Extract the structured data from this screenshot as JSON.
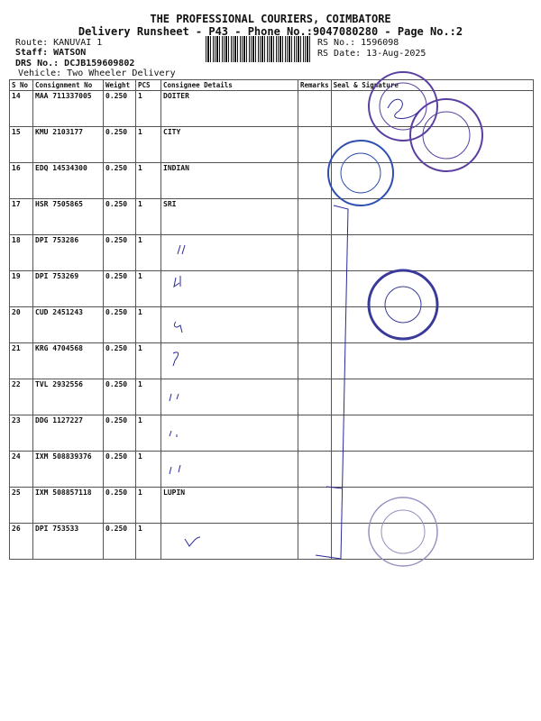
{
  "header": {
    "company": "THE PROFESSIONAL COURIERS, COIMBATORE",
    "subtitle": "Delivery Runsheet - P43 - Phone No.:9047080280 - Page No.:2",
    "route": "Route: KANUVAI 1",
    "staff": "Staff: WATSON",
    "drs": "DRS No.: DCJB159609802",
    "vehicle": "Vehicle: Two Wheeler Delivery",
    "rs_no": "RS No.: 1596098",
    "rs_date": "RS Date: 13-Aug-2025"
  },
  "table": {
    "columns": [
      "S No",
      "Consignment No",
      "Weight",
      "PCS",
      "Consignee Details",
      "Remarks",
      "Seal & Signature"
    ],
    "rows": [
      {
        "sno": "14",
        "consignment": "MAA 711337005",
        "weight": "0.250",
        "pcs": "1",
        "consignee": "DOITER"
      },
      {
        "sno": "15",
        "consignment": "KMU 2103177",
        "weight": "0.250",
        "pcs": "1",
        "consignee": "CITY"
      },
      {
        "sno": "16",
        "consignment": "EDQ 14534300",
        "weight": "0.250",
        "pcs": "1",
        "consignee": "INDIAN"
      },
      {
        "sno": "17",
        "consignment": "HSR 7505865",
        "weight": "0.250",
        "pcs": "1",
        "consignee": "SRI"
      },
      {
        "sno": "18",
        "consignment": "DPI 753286",
        "weight": "0.250",
        "pcs": "1",
        "consignee": ""
      },
      {
        "sno": "19",
        "consignment": "DPI 753269",
        "weight": "0.250",
        "pcs": "1",
        "consignee": ""
      },
      {
        "sno": "20",
        "consignment": "CUD 2451243",
        "weight": "0.250",
        "pcs": "1",
        "consignee": ""
      },
      {
        "sno": "21",
        "consignment": "KRG 4704568",
        "weight": "0.250",
        "pcs": "1",
        "consignee": ""
      },
      {
        "sno": "22",
        "consignment": "TVL 2932556",
        "weight": "0.250",
        "pcs": "1",
        "consignee": ""
      },
      {
        "sno": "23",
        "consignment": "DDG 1127227",
        "weight": "0.250",
        "pcs": "1",
        "consignee": ""
      },
      {
        "sno": "24",
        "consignment": "IXM 508839376",
        "weight": "0.250",
        "pcs": "1",
        "consignee": ""
      },
      {
        "sno": "25",
        "consignment": "IXM 508857118",
        "weight": "0.250",
        "pcs": "1",
        "consignee": "LUPIN"
      },
      {
        "sno": "26",
        "consignment": "DPI 753533",
        "weight": "0.250",
        "pcs": "1",
        "consignee": ""
      }
    ]
  },
  "colors": {
    "ink": "#2a2a9a",
    "stamp_purple": "#5a3fa0",
    "stamp_blue": "#2f4fb0"
  }
}
